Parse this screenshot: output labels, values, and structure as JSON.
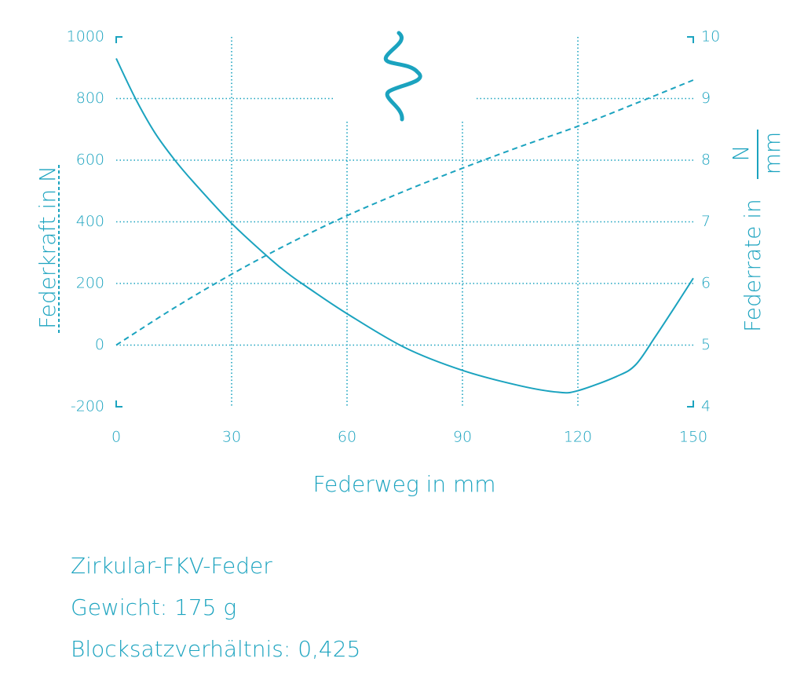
{
  "chart_data": {
    "type": "line",
    "x_label": "Federweg in mm",
    "y_label": "Federkraft in N",
    "y2_label": "Federrate in",
    "y2_unit_numerator": "N",
    "y2_unit_denominator": "mm",
    "x": [
      0,
      5,
      10,
      15,
      20,
      30,
      40,
      45,
      50,
      60,
      75,
      90,
      105,
      115,
      120,
      130,
      135,
      140,
      145,
      150
    ],
    "series": [
      {
        "name": "Federkraft",
        "color": "#1ba3bf",
        "axis": "y",
        "dash": false,
        "values": [
          930,
          800,
          690,
          604,
          530,
          395,
          280,
          229,
          185,
          102,
          -8,
          -82,
          -132,
          -153,
          -148,
          -102,
          -64,
          25,
          120,
          217
        ]
      },
      {
        "name": "Federrate",
        "color": "#1ba3bf",
        "axis": "y2",
        "dash": true,
        "values": [
          5.0,
          null,
          null,
          5.6,
          null,
          6.15,
          null,
          6.65,
          null,
          7.1,
          7.5,
          7.87,
          8.22,
          null,
          8.55,
          null,
          8.92,
          null,
          null,
          9.3
        ]
      }
    ],
    "xlim": [
      0,
      150
    ],
    "xticks": [
      0,
      30,
      60,
      90,
      120,
      150
    ],
    "ylim": [
      -200,
      1000
    ],
    "yticks": [
      -200,
      0,
      200,
      400,
      600,
      800,
      1000
    ],
    "y2lim": [
      4,
      10
    ],
    "y2ticks": [
      4,
      5,
      6,
      7,
      8,
      9,
      10
    ],
    "grid": true
  },
  "notes": [
    "Zirkular-FKV-Feder",
    "Gewicht: 175 g",
    "Blocksatzverhältnis: 0,425"
  ]
}
